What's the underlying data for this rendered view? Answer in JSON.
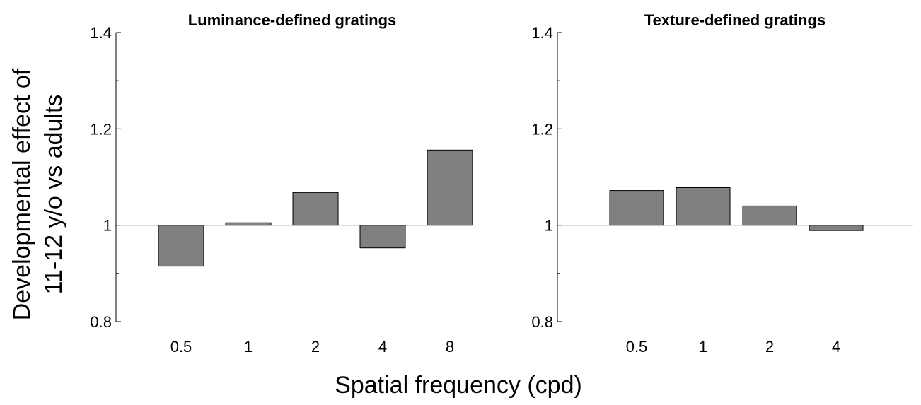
{
  "figure": {
    "ylabel_line1": "Developmental effect of",
    "ylabel_line2": "11-12 y/o vs adults",
    "xlabel": "Spatial frequency (cpd)"
  },
  "colors": {
    "bar_fill": "#808080",
    "bar_stroke": "#000000",
    "axis": "#000000"
  },
  "chart_data": [
    {
      "type": "bar",
      "title": "Luminance-defined gratings",
      "categories": [
        "0.5",
        "1",
        "2",
        "4",
        "8"
      ],
      "values": [
        0.915,
        1.005,
        1.068,
        0.953,
        1.156
      ],
      "baseline": 1,
      "ylim": [
        0.8,
        1.4
      ],
      "yticks": [
        "0.8",
        "1",
        "1.2",
        "1.4"
      ],
      "ytick_values": [
        0.8,
        1.0,
        1.2,
        1.4
      ],
      "grid": false
    },
    {
      "type": "bar",
      "title": "Texture-defined gratings",
      "categories": [
        "0.5",
        "1",
        "2",
        "4"
      ],
      "values": [
        1.072,
        1.078,
        1.04,
        0.989
      ],
      "baseline": 1,
      "ylim": [
        0.8,
        1.4
      ],
      "yticks": [
        "0.8",
        "1",
        "1.2",
        "1.4"
      ],
      "ytick_values": [
        0.8,
        1.0,
        1.2,
        1.4
      ],
      "grid": false
    }
  ]
}
